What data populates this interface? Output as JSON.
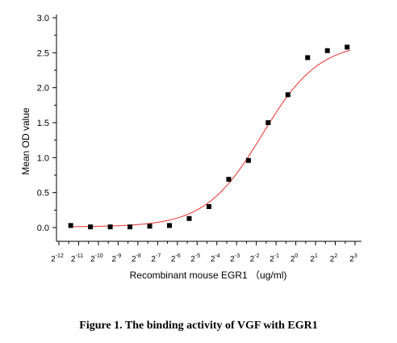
{
  "chart_data": {
    "type": "scatter",
    "title": "",
    "xlabel": "Recombinant mouse EGR1 （ug/ml)",
    "ylabel": "Mean OD value",
    "x_scale": "log2",
    "x_tick_base": "2",
    "x_tick_exponents": [
      "-12",
      "-11",
      "-10",
      "-9",
      "-8",
      "-7",
      "-6",
      "-5",
      "-4",
      "-3",
      "-2",
      "-1",
      "0",
      "1",
      "2",
      "3"
    ],
    "xlim_exponent": [
      -12,
      3
    ],
    "ylim": [
      0,
      3.0
    ],
    "y_ticks": [
      "0.0",
      "0.5",
      "1.0",
      "1.5",
      "2.0",
      "2.5",
      "3.0"
    ],
    "grid": false,
    "series": [
      {
        "marker": "square",
        "color": "#000000",
        "points": [
          {
            "x_exp": -11.4,
            "y": 0.03
          },
          {
            "x_exp": -10.4,
            "y": 0.01
          },
          {
            "x_exp": -9.4,
            "y": 0.01
          },
          {
            "x_exp": -8.4,
            "y": 0.01
          },
          {
            "x_exp": -7.4,
            "y": 0.02
          },
          {
            "x_exp": -6.4,
            "y": 0.03
          },
          {
            "x_exp": -5.4,
            "y": 0.13
          },
          {
            "x_exp": -4.4,
            "y": 0.3
          },
          {
            "x_exp": -3.4,
            "y": 0.69
          },
          {
            "x_exp": -2.4,
            "y": 0.96
          },
          {
            "x_exp": -1.4,
            "y": 1.5
          },
          {
            "x_exp": -0.4,
            "y": 1.9
          },
          {
            "x_exp": 0.6,
            "y": 2.43
          },
          {
            "x_exp": 1.6,
            "y": 2.53
          },
          {
            "x_exp": 2.6,
            "y": 2.58
          }
        ]
      }
    ],
    "fit_curve": {
      "type": "4PL",
      "color": "#e8302a",
      "bottom": 0.01,
      "top": 2.65,
      "ec50_exp": -1.7,
      "hill_per_exp": 1.0
    }
  },
  "caption": "Figure 1. The binding activity of VGF with EGR1"
}
